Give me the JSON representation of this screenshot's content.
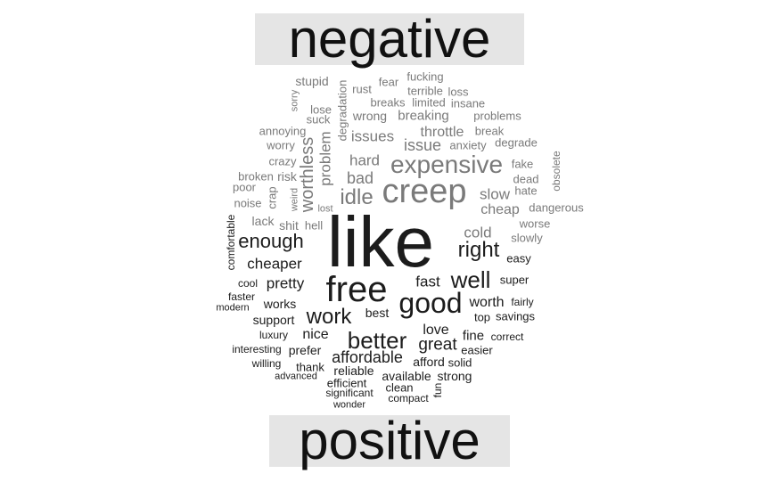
{
  "headers": {
    "negative": "negative",
    "positive": "positive"
  },
  "colors": {
    "negative_words": "#7a7a7a",
    "positive_words": "#1c1c1c",
    "header_bg": "#e5e5e5"
  },
  "negative_words": [
    "stupid",
    "fucking",
    "fear",
    "rust",
    "sorry",
    "terrible",
    "loss",
    "breaks",
    "limited",
    "insane",
    "lose",
    "suck",
    "degradation",
    "wrong",
    "breaking",
    "problems",
    "annoying",
    "throttle",
    "break",
    "issues",
    "worry",
    "issue",
    "anxiety",
    "degrade",
    "problem",
    "crazy",
    "worthless",
    "hard",
    "expensive",
    "fake",
    "obsolete",
    "broken",
    "risk",
    "bad",
    "poor",
    "creep",
    "dead",
    "crap",
    "weird",
    "idle",
    "slow",
    "hate",
    "noise",
    "lost",
    "cheap",
    "dangerous",
    "lack",
    "shit",
    "hell",
    "worse",
    "cold",
    "slowly"
  ],
  "positive_words": [
    "like",
    "comfortable",
    "enough",
    "right",
    "easy",
    "cheaper",
    "free",
    "well",
    "cool",
    "pretty",
    "fast",
    "super",
    "faster",
    "works",
    "good",
    "worth",
    "fairly",
    "modern",
    "best",
    "top",
    "savings",
    "support",
    "work",
    "luxury",
    "nice",
    "love",
    "fine",
    "correct",
    "interesting",
    "prefer",
    "better",
    "great",
    "easier",
    "willing",
    "affordable",
    "afford",
    "solid",
    "thank",
    "reliable",
    "advanced",
    "efficient",
    "available",
    "strong",
    "clean",
    "fun",
    "significant",
    "compact",
    "wonder"
  ]
}
